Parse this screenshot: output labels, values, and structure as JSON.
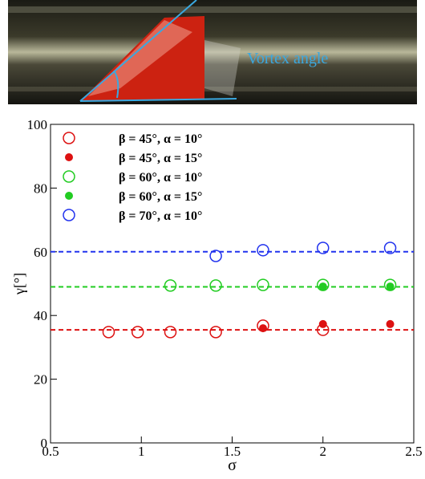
{
  "chart_data": {
    "type": "scatter",
    "annotation": "Vortex angle",
    "xlabel": "σ",
    "ylabel": "γ[°]",
    "xlim": [
      0.5,
      2.5
    ],
    "ylim": [
      0,
      100
    ],
    "xticks": [
      0.5,
      1,
      1.5,
      2,
      2.5
    ],
    "yticks": [
      0,
      20,
      40,
      60,
      80,
      100
    ],
    "series": [
      {
        "name": "β = 45°, α = 10°",
        "color": "#dd1111",
        "marker": "open",
        "x": [
          0.82,
          0.98,
          1.16,
          1.41,
          1.67,
          2.0
        ],
        "values": [
          34.8,
          34.8,
          34.8,
          34.8,
          36.8,
          35.5
        ]
      },
      {
        "name": "β = 45°, α = 15°",
        "color": "#dd1111",
        "marker": "filled",
        "x": [
          1.67,
          2.0,
          2.37
        ],
        "values": [
          36,
          37.3,
          37.3
        ]
      },
      {
        "name": "β = 60°, α = 10°",
        "color": "#22cc22",
        "marker": "open",
        "x": [
          1.16,
          1.41,
          1.67,
          2.0,
          2.37
        ],
        "values": [
          49.4,
          49.4,
          49.6,
          49.6,
          49.6
        ]
      },
      {
        "name": "β = 60°, α = 15°",
        "color": "#22cc22",
        "marker": "filled",
        "x": [
          2.0,
          2.37
        ],
        "values": [
          49.1,
          49.1
        ]
      },
      {
        "name": "β = 70°, α = 10°",
        "color": "#2233ee",
        "marker": "open",
        "x": [
          1.41,
          1.67,
          2.0,
          2.37
        ],
        "values": [
          58.7,
          60.5,
          61.2,
          61.2
        ]
      }
    ],
    "reference_lines": [
      {
        "color": "#dd1111",
        "value": 35.5
      },
      {
        "color": "#22cc22",
        "value": 49
      },
      {
        "color": "#2233ee",
        "value": 60
      }
    ]
  }
}
